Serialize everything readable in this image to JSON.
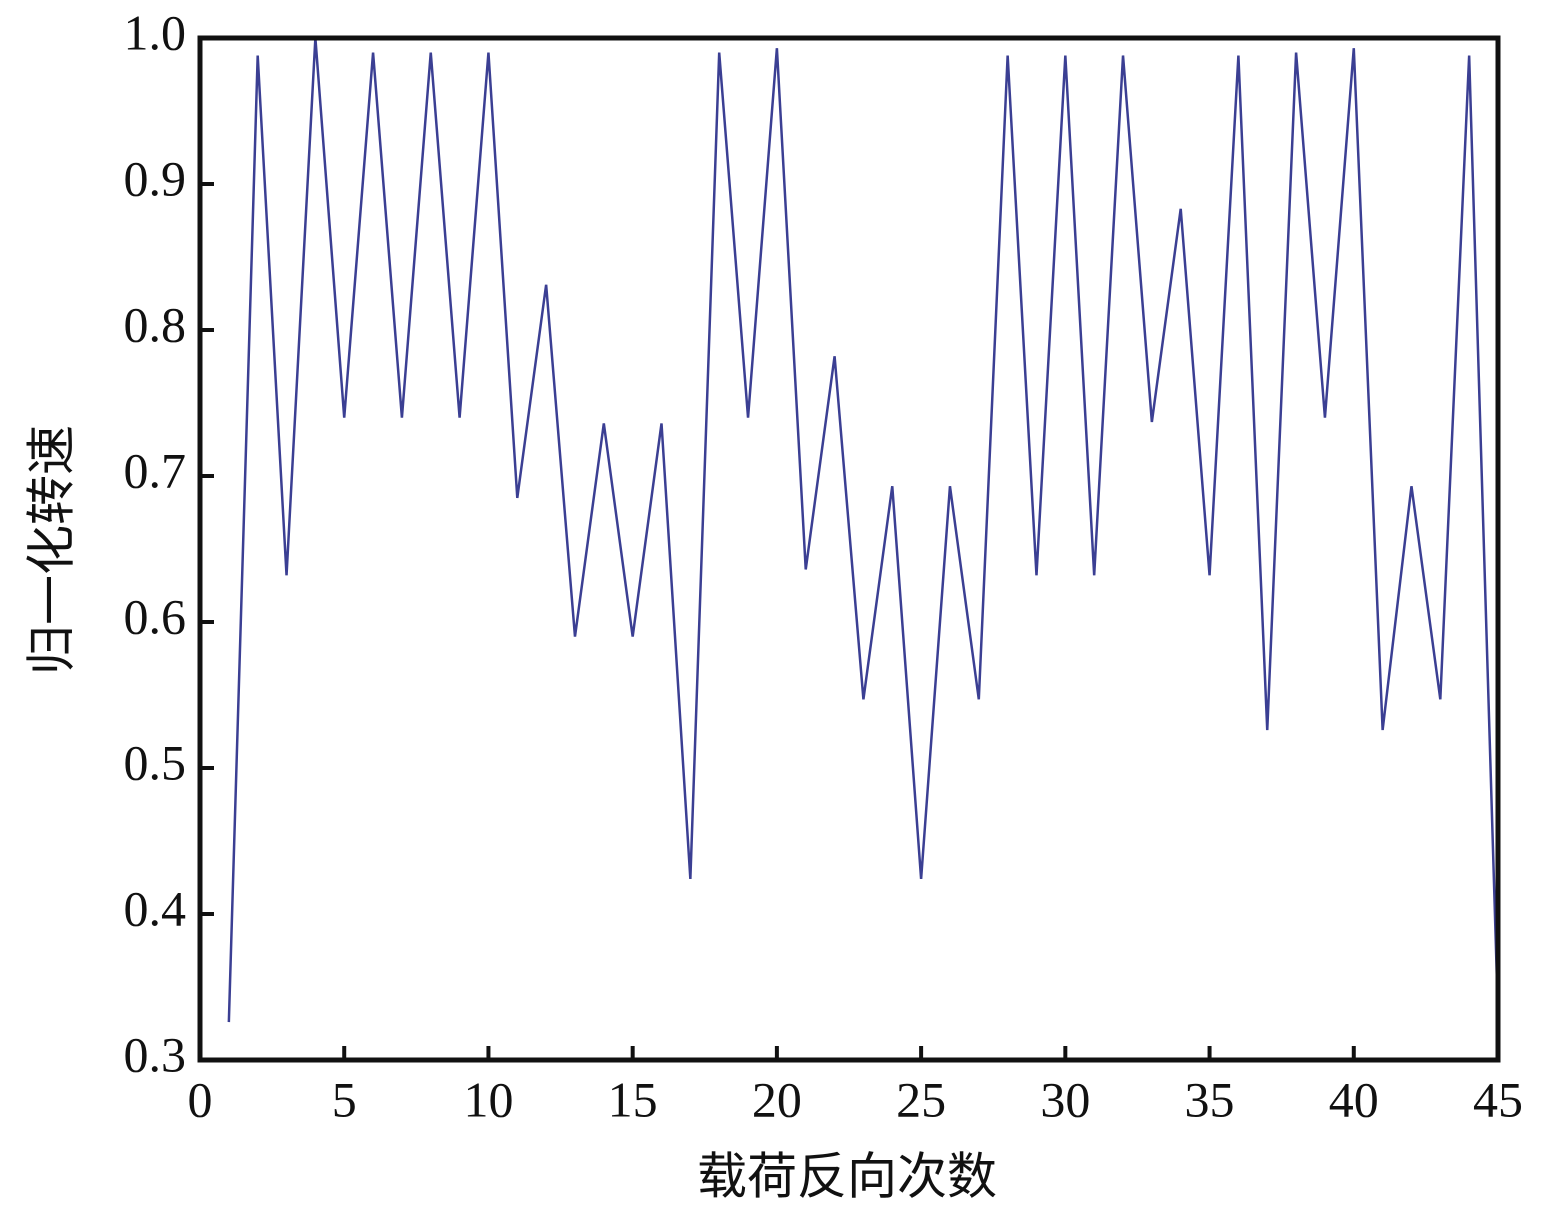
{
  "chart_data": {
    "type": "line",
    "x_label": "载荷反向次数",
    "y_label": "归一化转速",
    "x": [
      1,
      2,
      3,
      4,
      5,
      6,
      7,
      8,
      9,
      10,
      11,
      12,
      13,
      14,
      15,
      16,
      17,
      18,
      19,
      20,
      21,
      22,
      23,
      24,
      25,
      26,
      27,
      28,
      29,
      30,
      31,
      32,
      33,
      34,
      35,
      36,
      37,
      38,
      39,
      40,
      41,
      42,
      43,
      44,
      45
    ],
    "series": [
      {
        "color": "#3b3f93",
        "values": [
          0.326,
          0.988,
          0.632,
          1.0,
          0.74,
          0.99,
          0.74,
          0.99,
          0.74,
          0.99,
          0.685,
          0.831,
          0.59,
          0.736,
          0.59,
          0.736,
          0.424,
          0.99,
          0.74,
          0.993,
          0.636,
          0.782,
          0.547,
          0.693,
          0.424,
          0.693,
          0.547,
          0.988,
          0.632,
          0.988,
          0.632,
          0.988,
          0.737,
          0.883,
          0.632,
          0.988,
          0.526,
          0.99,
          0.74,
          0.993,
          0.526,
          0.693,
          0.547,
          0.988,
          0.33
        ]
      }
    ],
    "xlim": [
      0,
      45
    ],
    "xticks": [
      0,
      5,
      10,
      15,
      20,
      25,
      30,
      35,
      40,
      45
    ],
    "ylim": [
      0.3,
      1.0
    ],
    "yticks": [
      0.3,
      0.4,
      0.5,
      0.6,
      0.7,
      0.8,
      0.9,
      {
        "value": 1.0,
        "label": "1.0"
      }
    ]
  }
}
